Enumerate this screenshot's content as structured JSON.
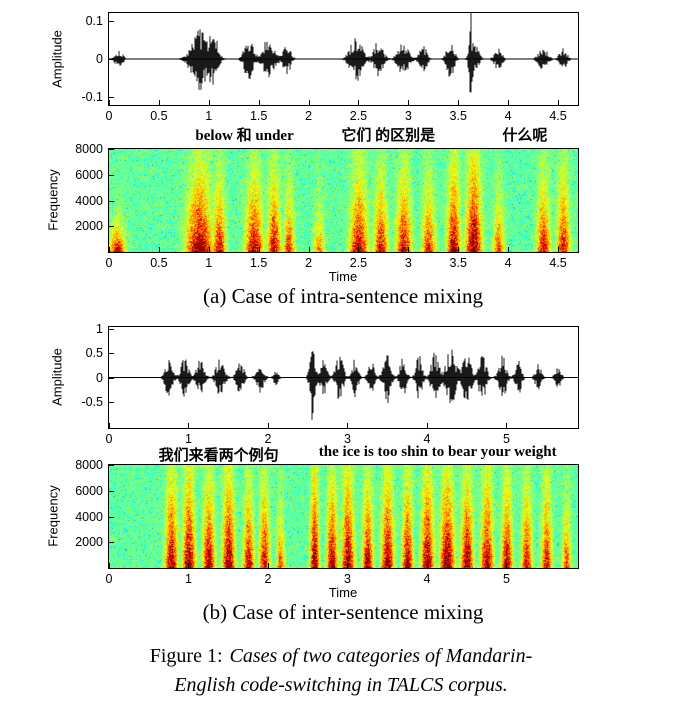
{
  "figure_caption": {
    "prefix": "Figure 1:",
    "line1_italic": "Cases of two categories of Mandarin-",
    "line2_italic": "English code-switching in TALCS corpus."
  },
  "panels": {
    "a": {
      "caption": "(a) Case of intra-sentence mixing",
      "annotations": [
        {
          "text": "below 和 under",
          "x": 0.29
        },
        {
          "text": "它们 的区别是",
          "x": 0.595
        },
        {
          "text": "什么呢",
          "x": 0.885
        }
      ],
      "waveform": {
        "type": "waveform",
        "ylabel": "Amplitude",
        "ylim": 0.12,
        "tmax": 4.7,
        "yticks": [
          {
            "label": "0.1",
            "v": 0.1
          },
          {
            "label": "0",
            "v": 0
          },
          {
            "label": "-0.1",
            "v": -0.1
          }
        ],
        "xticks": [
          {
            "label": "0",
            "t": 0
          },
          {
            "label": "0.5",
            "t": 0.5
          },
          {
            "label": "1",
            "t": 1
          },
          {
            "label": "1.5",
            "t": 1.5
          },
          {
            "label": "2",
            "t": 2
          },
          {
            "label": "2.5",
            "t": 2.5
          },
          {
            "label": "3",
            "t": 3
          },
          {
            "label": "3.5",
            "t": 3.5
          },
          {
            "label": "4",
            "t": 4
          },
          {
            "label": "4.5",
            "t": 4.5
          }
        ],
        "bursts": [
          {
            "t": 0.1,
            "w": 0.05,
            "a": 0.025
          },
          {
            "t": 0.9,
            "w": 0.1,
            "a": 0.085
          },
          {
            "t": 1.05,
            "w": 0.06,
            "a": 0.06
          },
          {
            "t": 1.4,
            "w": 0.06,
            "a": 0.055
          },
          {
            "t": 1.6,
            "w": 0.07,
            "a": 0.06
          },
          {
            "t": 1.78,
            "w": 0.05,
            "a": 0.045
          },
          {
            "t": 2.48,
            "w": 0.08,
            "a": 0.06
          },
          {
            "t": 2.7,
            "w": 0.06,
            "a": 0.05
          },
          {
            "t": 2.95,
            "w": 0.07,
            "a": 0.045
          },
          {
            "t": 3.15,
            "w": 0.05,
            "a": 0.035
          },
          {
            "t": 3.42,
            "w": 0.05,
            "a": 0.05
          },
          {
            "t": 3.62,
            "w": 0.015,
            "a": 0.115
          },
          {
            "t": 3.66,
            "w": 0.05,
            "a": 0.05
          },
          {
            "t": 3.9,
            "w": 0.05,
            "a": 0.03
          },
          {
            "t": 4.35,
            "w": 0.06,
            "a": 0.03
          },
          {
            "t": 4.55,
            "w": 0.05,
            "a": 0.03
          }
        ]
      },
      "spectrogram": {
        "type": "spectrogram",
        "ylabel": "Frequency",
        "xlabel": "Time",
        "fmax": 8000,
        "tmax": 4.7,
        "yticks": [
          {
            "label": "8000",
            "f": 8000
          },
          {
            "label": "6000",
            "f": 6000
          },
          {
            "label": "4000",
            "f": 4000
          },
          {
            "label": "2000",
            "f": 2000
          }
        ],
        "xticks": [
          {
            "label": "0",
            "t": 0
          },
          {
            "label": "0.5",
            "t": 0.5
          },
          {
            "label": "1",
            "t": 1
          },
          {
            "label": "1.5",
            "t": 1.5
          },
          {
            "label": "2",
            "t": 2
          },
          {
            "label": "2.5",
            "t": 2.5
          },
          {
            "label": "3",
            "t": 3
          },
          {
            "label": "3.5",
            "t": 3.5
          },
          {
            "label": "4",
            "t": 4
          },
          {
            "label": "4.5",
            "t": 4.5
          }
        ],
        "bands": [
          {
            "t": 0.08,
            "w": 0.07,
            "s": 0.9,
            "fh": 0.28
          },
          {
            "t": 0.9,
            "w": 0.12,
            "s": 0.95,
            "fh": 0.8
          },
          {
            "t": 1.1,
            "w": 0.06,
            "s": 0.8,
            "fh": 0.7
          },
          {
            "t": 1.45,
            "w": 0.08,
            "s": 0.85,
            "fh": 0.75
          },
          {
            "t": 1.65,
            "w": 0.06,
            "s": 0.8,
            "fh": 0.8
          },
          {
            "t": 1.8,
            "w": 0.05,
            "s": 0.7,
            "fh": 0.6
          },
          {
            "t": 2.1,
            "w": 0.05,
            "s": 0.5,
            "fh": 0.5
          },
          {
            "t": 2.5,
            "w": 0.08,
            "s": 0.85,
            "fh": 0.8
          },
          {
            "t": 2.72,
            "w": 0.06,
            "s": 0.8,
            "fh": 0.75
          },
          {
            "t": 2.95,
            "w": 0.07,
            "s": 0.8,
            "fh": 0.8
          },
          {
            "t": 3.2,
            "w": 0.06,
            "s": 0.7,
            "fh": 0.7
          },
          {
            "t": 3.45,
            "w": 0.06,
            "s": 0.9,
            "fh": 0.9
          },
          {
            "t": 3.65,
            "w": 0.07,
            "s": 1.0,
            "fh": 1.0
          },
          {
            "t": 3.9,
            "w": 0.05,
            "s": 0.6,
            "fh": 0.6
          },
          {
            "t": 4.35,
            "w": 0.06,
            "s": 0.8,
            "fh": 0.7
          },
          {
            "t": 4.55,
            "w": 0.06,
            "s": 0.75,
            "fh": 0.8
          }
        ]
      }
    },
    "b": {
      "caption": "(b) Case of inter-sentence mixing",
      "annotations": [
        {
          "text": "我们来看两个例句",
          "x": 0.235
        },
        {
          "text": "the ice is too shin to bear your weight",
          "x": 0.7
        }
      ],
      "waveform": {
        "type": "waveform",
        "ylabel": "Amplitude",
        "ylim": 1.05,
        "tmax": 5.9,
        "yticks": [
          {
            "label": "1",
            "v": 1
          },
          {
            "label": "0.5",
            "v": 0.5
          },
          {
            "label": "0",
            "v": 0
          },
          {
            "label": "-0.5",
            "v": -0.5
          }
        ],
        "xticks": [
          {
            "label": "0",
            "t": 0
          },
          {
            "label": "1",
            "t": 1
          },
          {
            "label": "2",
            "t": 2
          },
          {
            "label": "3",
            "t": 3
          },
          {
            "label": "4",
            "t": 4
          },
          {
            "label": "5",
            "t": 5
          }
        ],
        "bursts": [
          {
            "t": 0.75,
            "w": 0.06,
            "a": 0.4
          },
          {
            "t": 0.95,
            "w": 0.06,
            "a": 0.45
          },
          {
            "t": 1.15,
            "w": 0.06,
            "a": 0.38
          },
          {
            "t": 1.4,
            "w": 0.07,
            "a": 0.42
          },
          {
            "t": 1.65,
            "w": 0.06,
            "a": 0.35
          },
          {
            "t": 1.9,
            "w": 0.06,
            "a": 0.32
          },
          {
            "t": 2.1,
            "w": 0.04,
            "a": 0.22
          },
          {
            "t": 2.56,
            "w": 0.04,
            "a": 0.95
          },
          {
            "t": 2.7,
            "w": 0.05,
            "a": 0.4
          },
          {
            "t": 2.9,
            "w": 0.06,
            "a": 0.5
          },
          {
            "t": 3.1,
            "w": 0.05,
            "a": 0.42
          },
          {
            "t": 3.3,
            "w": 0.05,
            "a": 0.35
          },
          {
            "t": 3.5,
            "w": 0.06,
            "a": 0.55
          },
          {
            "t": 3.7,
            "w": 0.05,
            "a": 0.45
          },
          {
            "t": 3.9,
            "w": 0.05,
            "a": 0.48
          },
          {
            "t": 4.1,
            "w": 0.06,
            "a": 0.55
          },
          {
            "t": 4.3,
            "w": 0.08,
            "a": 0.62
          },
          {
            "t": 4.5,
            "w": 0.07,
            "a": 0.58
          },
          {
            "t": 4.7,
            "w": 0.06,
            "a": 0.52
          },
          {
            "t": 4.95,
            "w": 0.06,
            "a": 0.48
          },
          {
            "t": 5.15,
            "w": 0.05,
            "a": 0.38
          },
          {
            "t": 5.4,
            "w": 0.05,
            "a": 0.28
          },
          {
            "t": 5.65,
            "w": 0.05,
            "a": 0.22
          }
        ]
      },
      "spectrogram": {
        "type": "spectrogram",
        "ylabel": "Frequency",
        "xlabel": "Time",
        "fmax": 8000,
        "tmax": 5.9,
        "yticks": [
          {
            "label": "8000",
            "f": 8000
          },
          {
            "label": "6000",
            "f": 6000
          },
          {
            "label": "4000",
            "f": 4000
          },
          {
            "label": "2000",
            "f": 2000
          }
        ],
        "xticks": [
          {
            "label": "0",
            "t": 0
          },
          {
            "label": "1",
            "t": 1
          },
          {
            "label": "2",
            "t": 2
          },
          {
            "label": "3",
            "t": 3
          },
          {
            "label": "4",
            "t": 4
          },
          {
            "label": "5",
            "t": 5
          }
        ],
        "bands": [
          {
            "t": 0.78,
            "w": 0.07,
            "s": 0.9,
            "fh": 0.95
          },
          {
            "t": 1.0,
            "w": 0.07,
            "s": 0.95,
            "fh": 1.0
          },
          {
            "t": 1.25,
            "w": 0.07,
            "s": 0.9,
            "fh": 0.85
          },
          {
            "t": 1.5,
            "w": 0.07,
            "s": 0.95,
            "fh": 1.0
          },
          {
            "t": 1.75,
            "w": 0.06,
            "s": 0.85,
            "fh": 0.8
          },
          {
            "t": 1.95,
            "w": 0.06,
            "s": 0.8,
            "fh": 0.9
          },
          {
            "t": 2.15,
            "w": 0.05,
            "s": 0.6,
            "fh": 0.6
          },
          {
            "t": 2.58,
            "w": 0.05,
            "s": 1.0,
            "fh": 1.0
          },
          {
            "t": 2.8,
            "w": 0.06,
            "s": 0.9,
            "fh": 0.9
          },
          {
            "t": 3.0,
            "w": 0.07,
            "s": 0.95,
            "fh": 1.0
          },
          {
            "t": 3.25,
            "w": 0.06,
            "s": 0.9,
            "fh": 0.85
          },
          {
            "t": 3.5,
            "w": 0.07,
            "s": 0.95,
            "fh": 0.95
          },
          {
            "t": 3.75,
            "w": 0.06,
            "s": 0.9,
            "fh": 0.9
          },
          {
            "t": 4.0,
            "w": 0.07,
            "s": 0.95,
            "fh": 1.0
          },
          {
            "t": 4.25,
            "w": 0.08,
            "s": 1.0,
            "fh": 0.95
          },
          {
            "t": 4.5,
            "w": 0.07,
            "s": 0.95,
            "fh": 0.9
          },
          {
            "t": 4.75,
            "w": 0.07,
            "s": 0.9,
            "fh": 0.95
          },
          {
            "t": 5.0,
            "w": 0.06,
            "s": 0.9,
            "fh": 0.85
          },
          {
            "t": 5.25,
            "w": 0.06,
            "s": 0.8,
            "fh": 0.8
          },
          {
            "t": 5.5,
            "w": 0.06,
            "s": 0.75,
            "fh": 0.9
          },
          {
            "t": 5.75,
            "w": 0.05,
            "s": 0.6,
            "fh": 0.7
          }
        ]
      }
    }
  }
}
